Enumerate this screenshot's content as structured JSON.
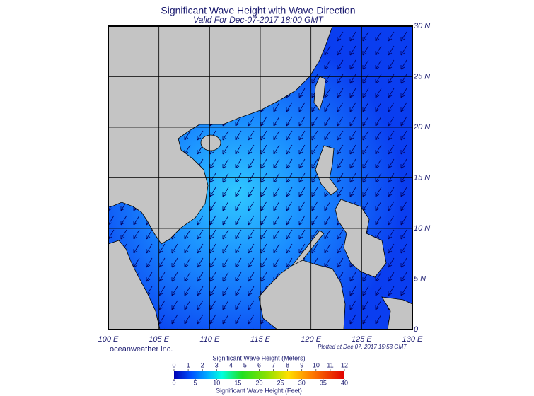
{
  "header": {
    "title": "Significant Wave Height with Wave Direction",
    "subtitle": "Valid For Dec-07-2017 18:00 GMT"
  },
  "map": {
    "lon_lim": [
      100,
      130
    ],
    "lat_lim": [
      0,
      30
    ],
    "lon_ticks": [
      {
        "value": 100,
        "label": "100 E"
      },
      {
        "value": 105,
        "label": "105 E"
      },
      {
        "value": 110,
        "label": "110 E"
      },
      {
        "value": 115,
        "label": "115 E"
      },
      {
        "value": 120,
        "label": "120 E"
      },
      {
        "value": 125,
        "label": "125 E"
      },
      {
        "value": 130,
        "label": "130 E"
      }
    ],
    "lat_ticks": [
      0,
      {
        "value": 5,
        "label": "5 N"
      },
      {
        "value": 10,
        "label": "10 N"
      },
      {
        "value": 15,
        "label": "15 N"
      },
      {
        "value": 20,
        "label": "20 N"
      },
      {
        "value": 25,
        "label": "25 N"
      },
      {
        "value": 30,
        "label": "30 N"
      }
    ]
  },
  "credit": "oceanweather inc.",
  "plotted": "Plotted at Dec 07, 2017 15:53 GMT",
  "legend": {
    "meters_title": "Significant Wave Height (Meters)",
    "meters_lim": [
      0,
      12
    ],
    "meters_ticks": [
      0,
      1,
      2,
      3,
      4,
      5,
      6,
      7,
      8,
      9,
      10,
      11,
      12
    ],
    "feet_lim": [
      0,
      40
    ],
    "feet_ticks": [
      0,
      5,
      10,
      15,
      20,
      25,
      30,
      35,
      40
    ],
    "feet_title": "Significant Wave Height (Feet)"
  }
}
